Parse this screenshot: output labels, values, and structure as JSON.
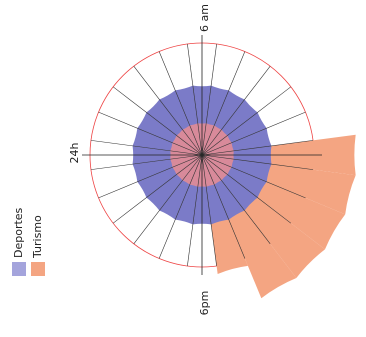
{
  "chart_data": {
    "type": "polar-area",
    "title": "",
    "angular_labels": [
      {
        "text": "6 am",
        "hour": 6
      },
      {
        "text": "24h",
        "hour": 0
      },
      {
        "text": "6pm",
        "hour": 18
      }
    ],
    "hours": [
      0,
      1,
      2,
      3,
      4,
      5,
      6,
      7,
      8,
      9,
      10,
      11,
      12,
      13,
      14,
      15,
      16,
      17,
      18,
      19,
      20,
      21,
      22,
      23
    ],
    "series": [
      {
        "name": "Turismo",
        "color": "#f4a582",
        "values": [
          0,
          0,
          0,
          0,
          0,
          0,
          0,
          0,
          0,
          0,
          0,
          0.3,
          1.55,
          1.55,
          1.55,
          1.55,
          1.55,
          1.2,
          0.65,
          0,
          0,
          0,
          0,
          0
        ]
      },
      {
        "name": "Deportes",
        "color": "#7b7bc8",
        "values": [
          0.7,
          0.7,
          0.7,
          0.7,
          0.7,
          0.7,
          0.7,
          0.7,
          0.7,
          0.7,
          0.7,
          0.7,
          0.7,
          0.7,
          0.7,
          0.7,
          0.7,
          0.7,
          0.7,
          0.7,
          0.7,
          0.7,
          0.7,
          0.7
        ]
      },
      {
        "name": "",
        "color": "#d88a9a",
        "values": [
          0.32,
          0.32,
          0.32,
          0.32,
          0.32,
          0.32,
          0.32,
          0.32,
          0.32,
          0.32,
          0.32,
          0.32,
          0.32,
          0.32,
          0.32,
          0.32,
          0.32,
          0.32,
          0.32,
          0.32,
          0.32,
          0.32,
          0.32,
          0.32
        ]
      }
    ],
    "outer_circle_value": 1.12,
    "outer_circle_color": "#ee4444",
    "legend": {
      "placement": "left-vertical",
      "items": [
        {
          "label": "Deportes",
          "color": "#a4a4dc"
        },
        {
          "label": "Turismo",
          "color": "#f4a582"
        }
      ]
    }
  }
}
